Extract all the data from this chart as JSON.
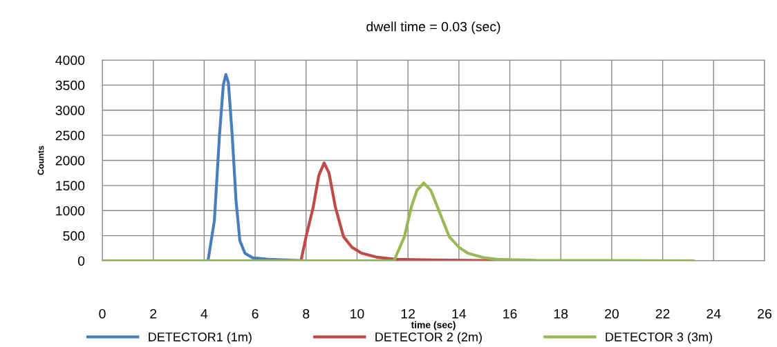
{
  "chart_data": {
    "type": "line",
    "title": "dwell time = 0.03 (sec)",
    "xlabel": "time (sec)",
    "ylabel": "Counts",
    "xlim": [
      0,
      26
    ],
    "xticks": [
      0,
      2,
      4,
      6,
      8,
      10,
      12,
      14,
      16,
      18,
      20,
      22,
      24,
      26
    ],
    "ylim": [
      0,
      4000
    ],
    "yticks": [
      0,
      500,
      1000,
      1500,
      2000,
      2500,
      3000,
      3500,
      4000
    ],
    "grid": true,
    "legend": "bottom",
    "marker": "none",
    "line_style": "solid",
    "series": [
      {
        "name": "DETECTOR1 (1m)",
        "color": "#4a7ebb",
        "x": [
          0,
          4.15,
          4.4,
          4.6,
          4.75,
          4.85,
          4.95,
          5.1,
          5.25,
          5.4,
          5.6,
          5.9,
          6.5,
          7,
          7.5,
          8
        ],
        "values": [
          0,
          0,
          800,
          2500,
          3500,
          3710,
          3550,
          2500,
          1200,
          400,
          150,
          60,
          30,
          20,
          10,
          0
        ]
      },
      {
        "name": "DETECTOR 2 (2m)",
        "color": "#be4b48",
        "x": [
          0,
          7.8,
          8.0,
          8.28,
          8.5,
          8.71,
          8.9,
          9.15,
          9.47,
          9.8,
          10.18,
          10.8,
          11.5,
          13,
          16
        ],
        "values": [
          0,
          0,
          480,
          1070,
          1700,
          1950,
          1750,
          1070,
          480,
          270,
          150,
          70,
          30,
          15,
          0
        ]
      },
      {
        "name": "DETECTOR 3 (3m)",
        "color": "#98b954",
        "x": [
          0,
          11.45,
          11.86,
          12.13,
          12.35,
          12.62,
          12.9,
          13.16,
          13.62,
          14.0,
          14.35,
          15.0,
          15.5,
          17,
          23.2
        ],
        "values": [
          0,
          0,
          480,
          1070,
          1400,
          1550,
          1400,
          1070,
          480,
          270,
          150,
          60,
          30,
          10,
          0
        ]
      }
    ]
  }
}
